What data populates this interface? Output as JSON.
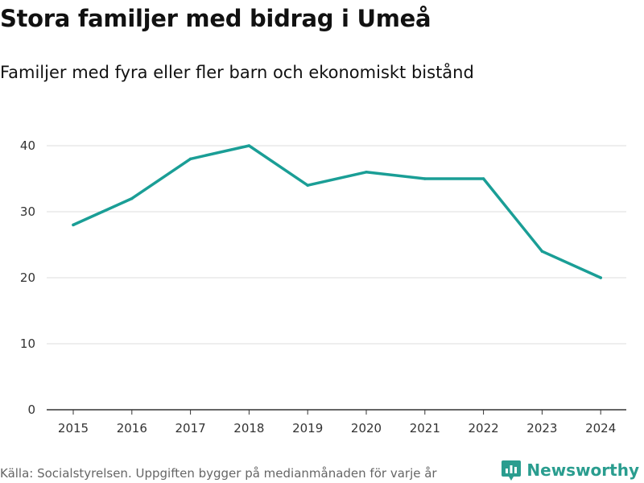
{
  "header": {
    "title": "Stora familjer med bidrag i Umeå",
    "subtitle": "Familjer med fyra eller fler barn och ekonomiskt bistånd"
  },
  "footer": {
    "source": "Källa: Socialstyrelsen. Uppgiften bygger på medianmånaden för varje år",
    "brand": "Newsworthy"
  },
  "colors": {
    "line": "#1a9e96",
    "grid": "#dddddd",
    "axis": "#333333",
    "brand": "#2a9d8f"
  },
  "chart_data": {
    "type": "line",
    "title": "Stora familjer med bidrag i Umeå",
    "subtitle": "Familjer med fyra eller fler barn och ekonomiskt bistånd",
    "xlabel": "",
    "ylabel": "",
    "categories": [
      "2015",
      "2016",
      "2017",
      "2018",
      "2019",
      "2020",
      "2021",
      "2022",
      "2023",
      "2024"
    ],
    "series": [
      {
        "name": "Familjer",
        "values": [
          28,
          32,
          38,
          40,
          34,
          36,
          35,
          35,
          24,
          20
        ]
      }
    ],
    "yticks": [
      0,
      10,
      20,
      30,
      40
    ],
    "ylim": [
      0,
      40
    ],
    "grid": true,
    "legend": "none"
  }
}
